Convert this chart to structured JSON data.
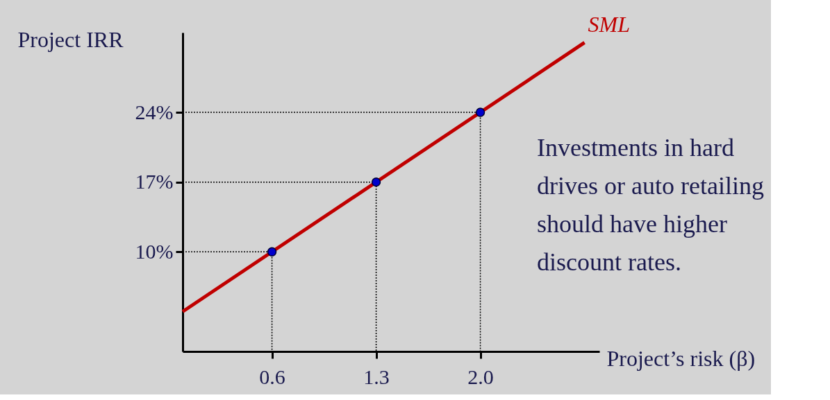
{
  "chart_data": {
    "type": "line",
    "xlabel": "Project’s risk (β)",
    "ylabel": "Project IRR",
    "xlim": [
      0,
      2.8
    ],
    "ylim": [
      0,
      32
    ],
    "xticks": [
      0.6,
      1.3,
      {
        "value": 2,
        "label": "2.0"
      }
    ],
    "yticks": [
      {
        "value": 10,
        "label": "10%"
      },
      {
        "value": 17,
        "label": "17%"
      },
      {
        "value": 24,
        "label": "24%"
      }
    ],
    "grid": false,
    "series": [
      {
        "color": "#000000",
        "line_style": "dotted",
        "marker": "none",
        "x": [
          0,
          0.6,
          0.6
        ],
        "values": [
          10,
          10,
          0
        ]
      },
      {
        "color": "#000000",
        "line_style": "dotted",
        "marker": "none",
        "x": [
          0,
          1.3,
          1.3
        ],
        "values": [
          17,
          17,
          0
        ]
      },
      {
        "color": "#000000",
        "line_style": "dotted",
        "marker": "none",
        "x": [
          0,
          2.0,
          2.0
        ],
        "values": [
          24,
          24,
          0
        ]
      },
      {
        "color": "#c00000",
        "line_style": "solid",
        "marker": "none",
        "x": [
          0,
          2.7
        ],
        "values": [
          4,
          31
        ]
      },
      {
        "type": "scatter",
        "color": "#0000cc",
        "marker": "circle",
        "x": [
          0.6,
          1.3,
          2.0
        ],
        "values": [
          10,
          17,
          24
        ]
      }
    ],
    "annotations": [
      {
        "text": "SML",
        "x": 2.7,
        "y": 31
      },
      "Investments in hard drives or auto retailing should have higher discount rates."
    ]
  }
}
